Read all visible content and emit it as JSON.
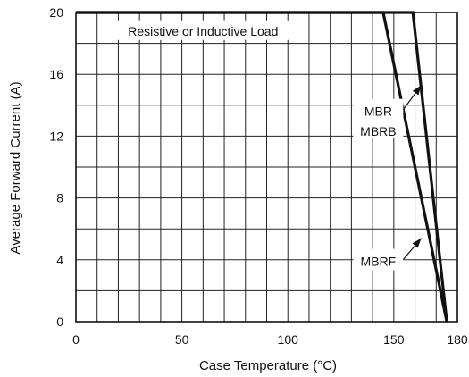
{
  "chart_data": {
    "type": "line",
    "xlabel": "Case Temperature (°C)",
    "ylabel": "Average Forward Current (A)",
    "xlim": [
      0,
      180
    ],
    "ylim": [
      0,
      20
    ],
    "x_ticks": [
      0,
      50,
      100,
      150,
      180
    ],
    "y_ticks": [
      0,
      4,
      8,
      12,
      16,
      20
    ],
    "x_minor_step": 10,
    "y_minor_step": 2,
    "grid": true,
    "series": [
      {
        "name": "MBR MBRB",
        "points": [
          [
            0,
            20
          ],
          [
            159,
            20
          ],
          [
            175,
            0
          ]
        ]
      },
      {
        "name": "MBRF",
        "points": [
          [
            0,
            20
          ],
          [
            145,
            20
          ],
          [
            175,
            0
          ]
        ]
      }
    ],
    "annotations": [
      {
        "text": "Resistive or Inductive Load",
        "x": 60,
        "y": 18.8
      },
      {
        "text": "MBR",
        "x": 130,
        "y": 13.6,
        "arrow_to": [
          163,
          15.3
        ]
      },
      {
        "text": "MBRB",
        "x": 130,
        "y": 12.3
      },
      {
        "text": "MBRF",
        "x": 130,
        "y": 3.9,
        "arrow_to": [
          163,
          5.4
        ]
      }
    ]
  }
}
